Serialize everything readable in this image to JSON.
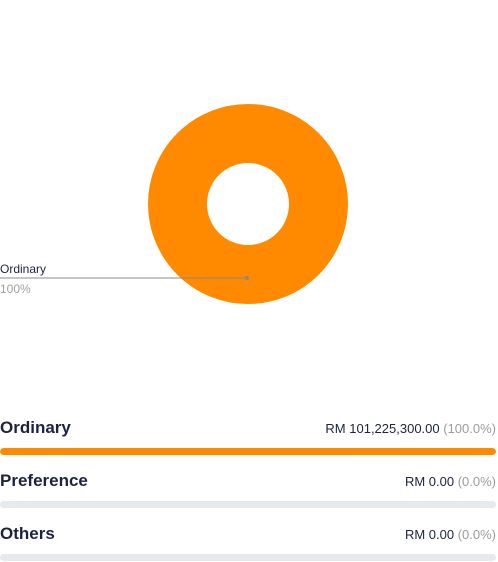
{
  "chart_data": {
    "type": "pie",
    "style": "donut",
    "categories": [
      "Ordinary"
    ],
    "values": [
      100
    ],
    "colors": [
      "#ff8a00"
    ],
    "callout": {
      "label": "Ordinary",
      "percent": "100%"
    }
  },
  "breakdown": [
    {
      "name": "Ordinary",
      "amount": "RM 101,225,300.00",
      "percent": "(100.0%)",
      "fraction": 1.0,
      "color": "#ff8a00"
    },
    {
      "name": "Preference",
      "amount": "RM 0.00",
      "percent": "(0.0%)",
      "fraction": 0.0,
      "color": "#ff8a00"
    },
    {
      "name": "Others",
      "amount": "RM 0.00",
      "percent": "(0.0%)",
      "fraction": 0.0,
      "color": "#ff8a00"
    }
  ]
}
